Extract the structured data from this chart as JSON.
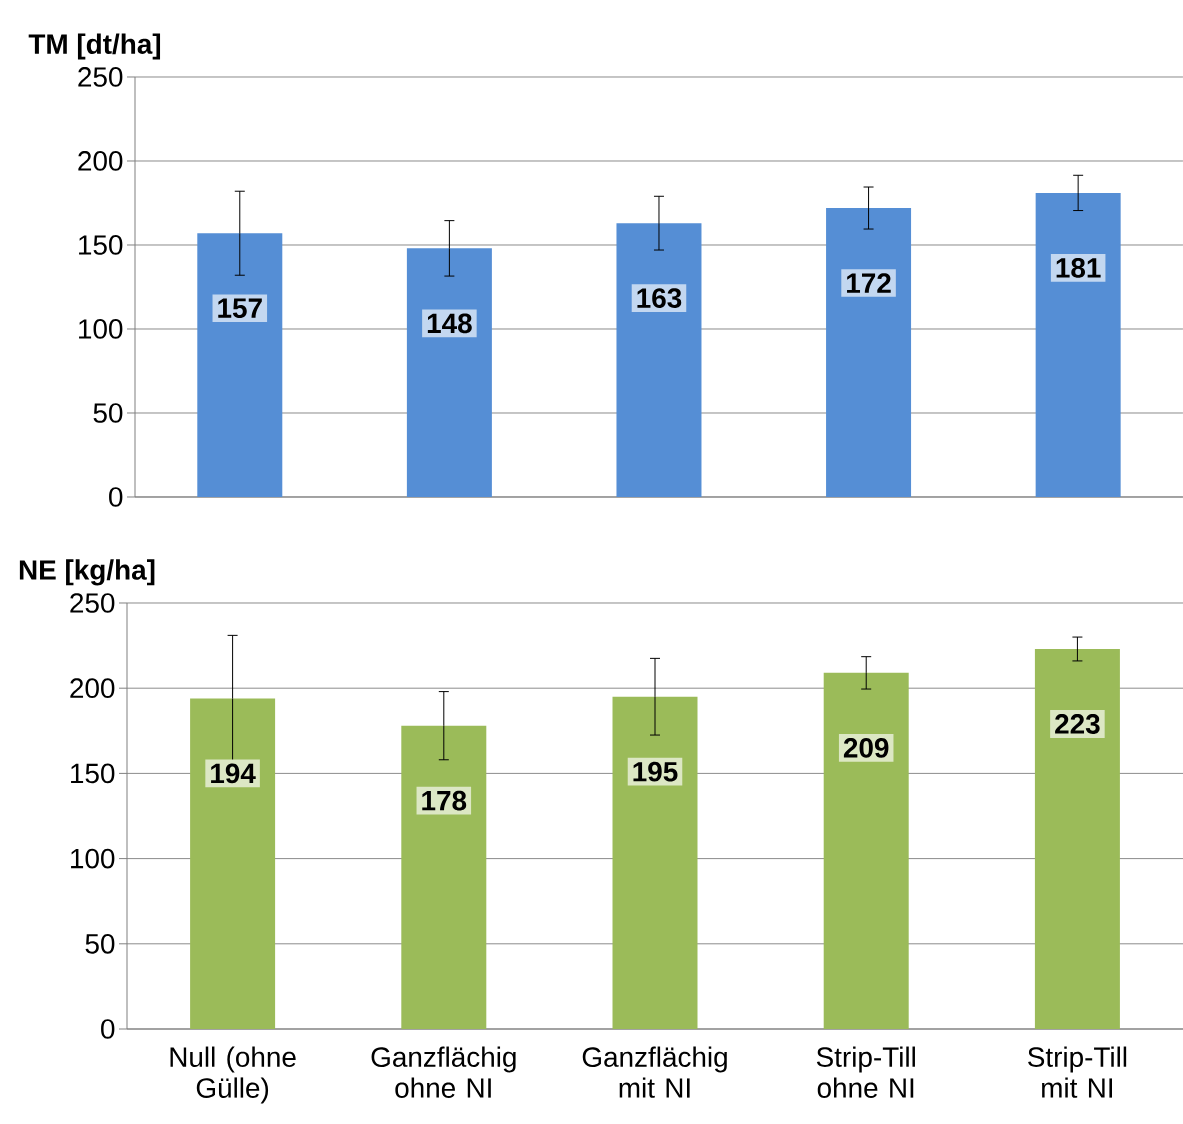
{
  "chart_data": [
    {
      "type": "bar",
      "ylabel": "TM [dt/ha]",
      "categories": [
        null,
        null,
        null,
        null,
        null
      ],
      "values": [
        157,
        148,
        163,
        172,
        181
      ],
      "errors": [
        25,
        16.5,
        16,
        12.5,
        10.5
      ],
      "color": "#558ed5",
      "ylim": [
        0,
        250
      ],
      "yticks": [
        0,
        50,
        100,
        150,
        200,
        250
      ],
      "grid": "y",
      "data_labels": true,
      "tick_labels": "y"
    },
    {
      "type": "bar",
      "ylabel": "NE [kg/ha]",
      "categories": [
        "Null (ohne Gülle)",
        "Ganzflächig ohne NI",
        "Ganzflächig mit NI",
        "Strip-Till ohne NI",
        "Strip-Till mit NI"
      ],
      "values": [
        194,
        178,
        195,
        209,
        223
      ],
      "errors": [
        37,
        20,
        22.5,
        9.5,
        7
      ],
      "color": "#9bbb59",
      "ylim": [
        0,
        250
      ],
      "yticks": [
        0,
        50,
        100,
        150,
        200,
        250
      ],
      "grid": "y",
      "data_labels": true
    }
  ]
}
